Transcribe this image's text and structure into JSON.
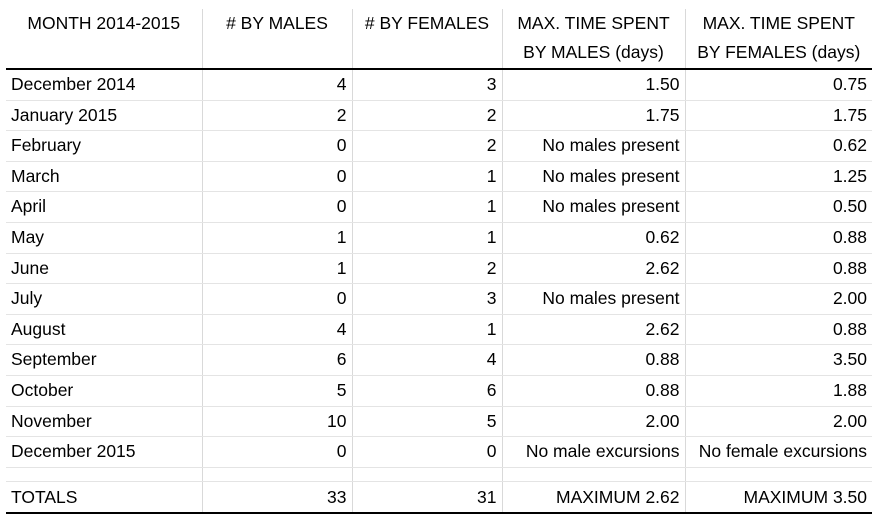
{
  "headers": [
    [
      "MONTH 2014-2015"
    ],
    [
      "# BY MALES"
    ],
    [
      "# BY FEMALES"
    ],
    [
      "MAX. TIME SPENT",
      "BY MALES (days)"
    ],
    [
      "MAX. TIME SPENT",
      "BY FEMALES (days)"
    ]
  ],
  "rows": [
    [
      "December 2014",
      "4",
      "3",
      "1.50",
      "0.75"
    ],
    [
      "January 2015",
      "2",
      "2",
      "1.75",
      "1.75"
    ],
    [
      "February",
      "0",
      "2",
      "No males present",
      "0.62"
    ],
    [
      "March",
      "0",
      "1",
      "No males present",
      "1.25"
    ],
    [
      "April",
      "0",
      "1",
      "No males present",
      "0.50"
    ],
    [
      "May",
      "1",
      "1",
      "0.62",
      "0.88"
    ],
    [
      "June",
      "1",
      "2",
      "2.62",
      "0.88"
    ],
    [
      "July",
      "0",
      "3",
      "No males present",
      "2.00"
    ],
    [
      "August",
      "4",
      "1",
      "2.62",
      "0.88"
    ],
    [
      "September",
      "6",
      "4",
      "0.88",
      "3.50"
    ],
    [
      "October",
      "5",
      "6",
      "0.88",
      "1.88"
    ],
    [
      "November",
      "10",
      "5",
      "2.00",
      "2.00"
    ],
    [
      "December 2015",
      "0",
      "0",
      "No male excursions",
      "No female excursions"
    ]
  ],
  "totals": [
    "TOTALS",
    "33",
    "31",
    "MAXIMUM 2.62",
    "MAXIMUM 3.50"
  ]
}
